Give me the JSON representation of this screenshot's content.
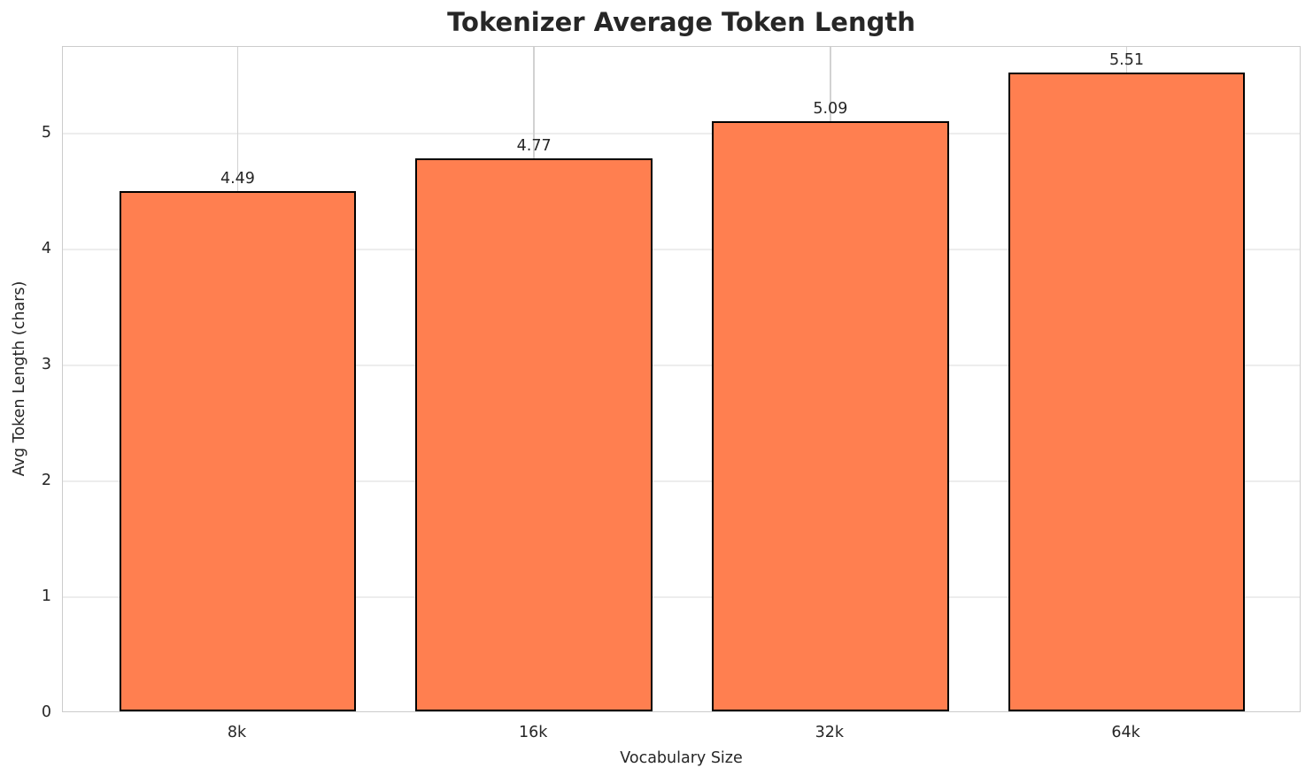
{
  "chart_data": {
    "type": "bar",
    "title": "Tokenizer Average Token Length",
    "xlabel": "Vocabulary Size",
    "ylabel": "Avg Token Length (chars)",
    "categories": [
      "8k",
      "16k",
      "32k",
      "64k"
    ],
    "values": [
      4.49,
      4.77,
      5.09,
      5.51
    ],
    "bar_labels": [
      "4.49",
      "4.77",
      "5.09",
      "5.51"
    ],
    "yticks": [
      "0",
      "1",
      "2",
      "3",
      "4",
      "5"
    ],
    "ylim": [
      0,
      5.75
    ],
    "grid": "on",
    "legend": "none",
    "colors": {
      "bar_fill": "#ff7f50",
      "bar_edge": "#000000",
      "text": "#262626",
      "grid_horizontal": "#ededed",
      "grid_vertical": "#d2d2d2",
      "spine": "#cccccc",
      "background": "#ffffff"
    }
  }
}
